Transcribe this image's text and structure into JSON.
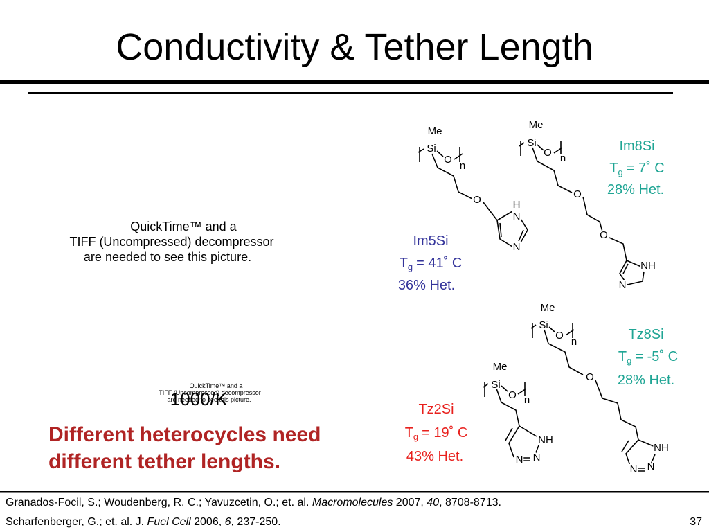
{
  "title": "Conductivity & Tether Length",
  "placeholders": [
    [
      "QuickTime™ and a",
      "TIFF (Uncompressed) decompressor",
      "are needed to see this picture."
    ],
    [
      "QuickTime™ and a",
      "TIFF (Uncompressed) decompressor",
      "are needed to see this picture."
    ]
  ],
  "overlay_label": "1000/K",
  "conclusion": [
    "Different heterocycles need",
    "different tether lengths."
  ],
  "compounds": [
    {
      "name": "Im5Si",
      "tg": {
        "symbol": "T",
        "subscript": "g",
        "value": "= 41˚ C"
      },
      "het": "36% Het."
    },
    {
      "name": "Im8Si",
      "tg": {
        "symbol": "T",
        "subscript": "g",
        "value": "= 7˚ C"
      },
      "het": "28% Het."
    },
    {
      "name": "Tz8Si",
      "tg": {
        "symbol": "T",
        "subscript": "g",
        "value": "= -5˚ C"
      },
      "het": "28% Het."
    },
    {
      "name": "Tz2Si",
      "tg": {
        "symbol": "T",
        "subscript": "g",
        "value": "= 19˚ C"
      },
      "het": "43% Het."
    }
  ],
  "structures": [
    {
      "atoms": [
        "Me",
        "Si",
        "O",
        "n",
        "O",
        "H",
        "N",
        "N"
      ]
    },
    {
      "atoms": [
        "Me",
        "Si",
        "O",
        "n",
        "O",
        "O",
        "NH",
        "N"
      ]
    },
    {
      "atoms": [
        "Me",
        "Si",
        "O",
        "n",
        "O",
        "NH",
        "N",
        "N"
      ]
    },
    {
      "atoms": [
        "Me",
        "Si",
        "O",
        "n",
        "NH",
        "N",
        "N"
      ]
    }
  ],
  "references": [
    [
      "Granados-Focil, S.; Woudenberg, R. C.; Yavuzcetin, O.; et. al. ",
      "Macromolecules",
      " 2007, ",
      "40",
      ", 8708-8713."
    ],
    [
      "Scharfenberger, G.; et. al. J. ",
      "Fuel Cell",
      " 2006, ",
      "6",
      ", 237-250."
    ]
  ],
  "page_number": "37"
}
